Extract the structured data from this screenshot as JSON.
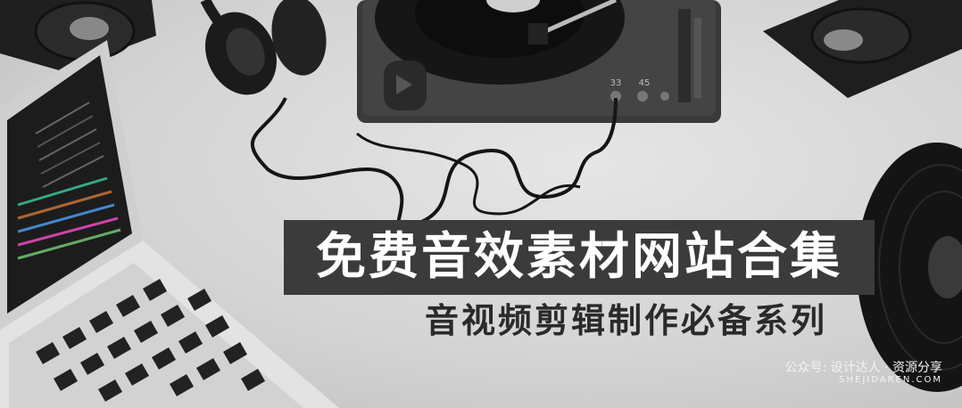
{
  "banner": {
    "title": "免费音效素材网站合集",
    "subtitle": "音视频剪辑制作必备系列"
  },
  "watermark": {
    "line1": "公众号: 设计达人 · 资源分享",
    "line2": "SHEJIDAREN.COM"
  },
  "turntable": {
    "speed_33": "33",
    "speed_45": "45"
  },
  "colors": {
    "title_bg": "#3b3b3b",
    "title_text": "#ffffff",
    "subtitle_text": "#2a2a2a",
    "background": "#d9d9d9"
  }
}
